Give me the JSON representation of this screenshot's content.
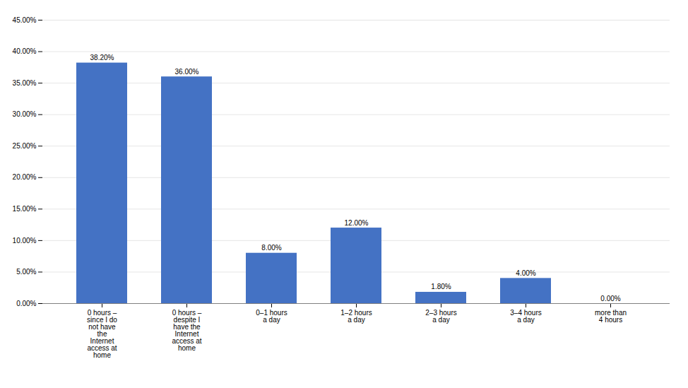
{
  "chart_data": {
    "type": "bar",
    "categories": [
      "0 hours –\nsince I do\nnot have\nthe\nInternet\naccess at\nhome",
      "0 hours –\ndespite I\nhave the\nInternet\naccess at\nhome",
      "0–1 hours\na day",
      "1–2 hours\na day",
      "2–3 hours\na day",
      "3–4 hours\na day",
      "more than\n4 hours"
    ],
    "values": [
      0.382,
      0.36,
      0.08,
      0.12,
      0.018,
      0.04,
      0.0
    ],
    "value_labels": [
      "38.20%",
      "36.00%",
      "8.00%",
      "12.00%",
      "1.80%",
      "4.00%",
      "0.00%"
    ],
    "data_labels": true,
    "color": "#4472C4",
    "ylim": [
      0,
      0.45
    ],
    "yticks": [
      {
        "value": 0.0,
        "label": "0.00%"
      },
      {
        "value": 0.05,
        "label": "5.00%"
      },
      {
        "value": 0.1,
        "label": "10.00%"
      },
      {
        "value": 0.15,
        "label": "15.00%"
      },
      {
        "value": 0.2,
        "label": "20.00%"
      },
      {
        "value": 0.25,
        "label": "25.00%"
      },
      {
        "value": 0.3,
        "label": "30.00%"
      },
      {
        "value": 0.35,
        "label": "35.00%"
      },
      {
        "value": 0.4,
        "label": "40.00%"
      },
      {
        "value": 0.45,
        "label": "45.00%"
      }
    ],
    "grid": true
  }
}
